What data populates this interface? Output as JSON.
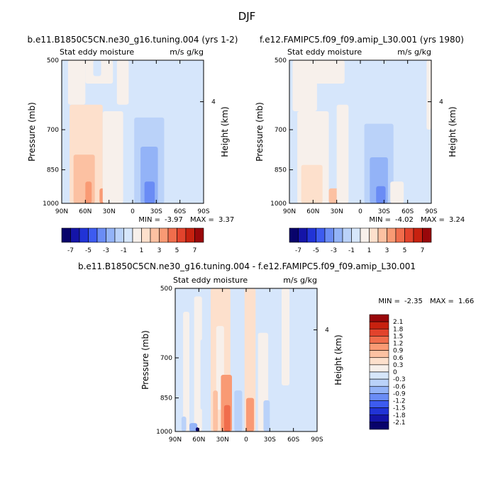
{
  "figure_title": "DJF",
  "chart_data": [
    {
      "type": "contour",
      "title": "b.e11.B1850C5CN.ne30_g16.tuning.004 (yrs 1-2)",
      "left_label": "Stat eddy moisture",
      "right_label": "m/s g/kg",
      "ylabel": "Pressure (mb)",
      "ylabel_right": "Height (km)",
      "xticks": [
        "90N",
        "60N",
        "30N",
        "0",
        "30S",
        "60S",
        "90S"
      ],
      "yticks": [
        "500",
        "700",
        "850",
        "1000"
      ],
      "ylim": [
        500,
        1000
      ],
      "right_ticks": [
        "4"
      ],
      "min_text": "MIN =",
      "min_value": "-3.97",
      "max_text": "MAX =",
      "max_value": "3.37",
      "colorbar_labels": [
        "-7",
        "-5",
        "-3",
        "-1",
        "1",
        "3",
        "5",
        "7"
      ],
      "cells": [
        {
          "x0": -90,
          "x1": -82,
          "p0": 500,
          "p1": 1000,
          "v": -0.5
        },
        {
          "x0": -82,
          "x1": -60,
          "p0": 500,
          "p1": 620,
          "v": 0.5
        },
        {
          "x0": -80,
          "x1": -38,
          "p0": 620,
          "p1": 1000,
          "v": 1.2
        },
        {
          "x0": -75,
          "x1": -48,
          "p0": 790,
          "p1": 1000,
          "v": 2.2
        },
        {
          "x0": -60,
          "x1": -52,
          "p0": 900,
          "p1": 1000,
          "v": 3.0
        },
        {
          "x0": -42,
          "x1": -30,
          "p0": 930,
          "p1": 1000,
          "v": 3.3
        },
        {
          "x0": -60,
          "x1": -25,
          "p0": 500,
          "p1": 560,
          "v": 0.4
        },
        {
          "x0": -38,
          "x1": -12,
          "p0": 640,
          "p1": 1000,
          "v": 0.8
        },
        {
          "x0": -50,
          "x1": -40,
          "p0": 500,
          "p1": 540,
          "v": -0.4
        },
        {
          "x0": -20,
          "x1": -5,
          "p0": 500,
          "p1": 620,
          "v": 0.4
        },
        {
          "x0": -10,
          "x1": -2,
          "p0": 700,
          "p1": 1000,
          "v": -0.3
        },
        {
          "x0": 2,
          "x1": 40,
          "p0": 660,
          "p1": 1000,
          "v": -1.2
        },
        {
          "x0": 10,
          "x1": 32,
          "p0": 760,
          "p1": 1000,
          "v": -2.2
        },
        {
          "x0": 15,
          "x1": 28,
          "p0": 900,
          "p1": 1000,
          "v": -3.4
        }
      ]
    },
    {
      "type": "contour",
      "title": "f.e12.FAMIPC5.f09_f09.amip_L30.001 (yrs 1980)",
      "left_label": "Stat eddy moisture",
      "right_label": "m/s g/kg",
      "ylabel": "Pressure (mb)",
      "ylabel_right": "Height (km)",
      "xticks": [
        "90N",
        "60N",
        "30N",
        "0",
        "30S",
        "60S",
        "90S"
      ],
      "yticks": [
        "500",
        "700",
        "850",
        "1000"
      ],
      "ylim": [
        500,
        1000
      ],
      "right_ticks": [
        "4"
      ],
      "min_text": "MIN =",
      "min_value": "-4.02",
      "max_text": "MAX =",
      "max_value": "3.24",
      "colorbar_labels": [
        "-7",
        "-5",
        "-3",
        "-1",
        "1",
        "3",
        "5",
        "7"
      ],
      "cells": [
        {
          "x0": -90,
          "x1": -84,
          "p0": 500,
          "p1": 1000,
          "v": -0.5
        },
        {
          "x0": -86,
          "x1": -55,
          "p0": 500,
          "p1": 640,
          "v": 0.4
        },
        {
          "x0": -80,
          "x1": -40,
          "p0": 640,
          "p1": 1000,
          "v": 0.9
        },
        {
          "x0": -75,
          "x1": -48,
          "p0": 830,
          "p1": 1000,
          "v": 1.8
        },
        {
          "x0": -40,
          "x1": -25,
          "p0": 930,
          "p1": 1000,
          "v": 2.2
        },
        {
          "x0": -60,
          "x1": -20,
          "p0": 500,
          "p1": 560,
          "v": 0.4
        },
        {
          "x0": -30,
          "x1": -15,
          "p0": 620,
          "p1": 1000,
          "v": 0.8
        },
        {
          "x0": -12,
          "x1": -2,
          "p0": 800,
          "p1": 1000,
          "v": -0.6
        },
        {
          "x0": 5,
          "x1": 42,
          "p0": 680,
          "p1": 1000,
          "v": -1.2
        },
        {
          "x0": 12,
          "x1": 35,
          "p0": 800,
          "p1": 1000,
          "v": -2.2
        },
        {
          "x0": 20,
          "x1": 32,
          "p0": 920,
          "p1": 1000,
          "v": -3.5
        },
        {
          "x0": 38,
          "x1": 55,
          "p0": 900,
          "p1": 1000,
          "v": 0.5
        },
        {
          "x0": 84,
          "x1": 90,
          "p0": 500,
          "p1": 700,
          "v": 0.5
        }
      ]
    },
    {
      "type": "contour",
      "title": "b.e11.B1850C5CN.ne30_g16.tuning.004 - f.e12.FAMIPC5.f09_f09.amip_L30.001",
      "left_label": "Stat eddy moisture",
      "right_label": "m/s g/kg",
      "ylabel": "Pressure (mb)",
      "ylabel_right": "Height (km)",
      "xticks": [
        "90N",
        "60N",
        "30N",
        "0",
        "30S",
        "60S",
        "90S"
      ],
      "yticks": [
        "500",
        "700",
        "850",
        "1000"
      ],
      "ylim": [
        500,
        1000
      ],
      "right_ticks": [
        "4"
      ],
      "min_text": "MIN =",
      "min_value": "-2.35",
      "max_text": "MAX =",
      "max_value": "1.66",
      "colorbar_labels": [
        "2.1",
        "1.8",
        "1.5",
        "1.2",
        "0.9",
        "0.6",
        "0.3",
        "0",
        "-0.3",
        "-0.6",
        "-0.9",
        "-1.2",
        "-1.5",
        "-1.8",
        "-2.1"
      ],
      "cells": [
        {
          "x0": -80,
          "x1": -72,
          "p0": 560,
          "p1": 1000,
          "v": 0.15
        },
        {
          "x0": -66,
          "x1": -56,
          "p0": 520,
          "p1": 1000,
          "v": 0.2
        },
        {
          "x0": -58,
          "x1": -50,
          "p0": 640,
          "p1": 900,
          "v": -0.15
        },
        {
          "x0": -45,
          "x1": -20,
          "p0": 500,
          "p1": 1000,
          "v": 0.45
        },
        {
          "x0": -38,
          "x1": -28,
          "p0": 600,
          "p1": 900,
          "v": 0.2
        },
        {
          "x0": -42,
          "x1": -36,
          "p0": 820,
          "p1": 1000,
          "v": 0.8
        },
        {
          "x0": -32,
          "x1": -18,
          "p0": 760,
          "p1": 1000,
          "v": 1.0
        },
        {
          "x0": -28,
          "x1": -20,
          "p0": 880,
          "p1": 1000,
          "v": 1.4
        },
        {
          "x0": -15,
          "x1": -5,
          "p0": 820,
          "p1": 1000,
          "v": -0.4
        },
        {
          "x0": -2,
          "x1": 12,
          "p0": 500,
          "p1": 1000,
          "v": 0.3
        },
        {
          "x0": 0,
          "x1": 10,
          "p0": 850,
          "p1": 1000,
          "v": 0.9
        },
        {
          "x0": 15,
          "x1": 28,
          "p0": 620,
          "p1": 1000,
          "v": 0.25
        },
        {
          "x0": 22,
          "x1": 30,
          "p0": 860,
          "p1": 1000,
          "v": -0.35
        },
        {
          "x0": 45,
          "x1": 55,
          "p0": 500,
          "p1": 800,
          "v": 0.15
        },
        {
          "x0": 58,
          "x1": 66,
          "p0": 900,
          "p1": 1000,
          "v": -0.3
        },
        {
          "x0": -82,
          "x1": -76,
          "p0": 930,
          "p1": 1000,
          "v": -0.5
        },
        {
          "x0": -72,
          "x1": -62,
          "p0": 960,
          "p1": 1000,
          "v": -0.9
        },
        {
          "x0": -64,
          "x1": -60,
          "p0": 980,
          "p1": 1000,
          "v": -2.2
        }
      ]
    }
  ]
}
